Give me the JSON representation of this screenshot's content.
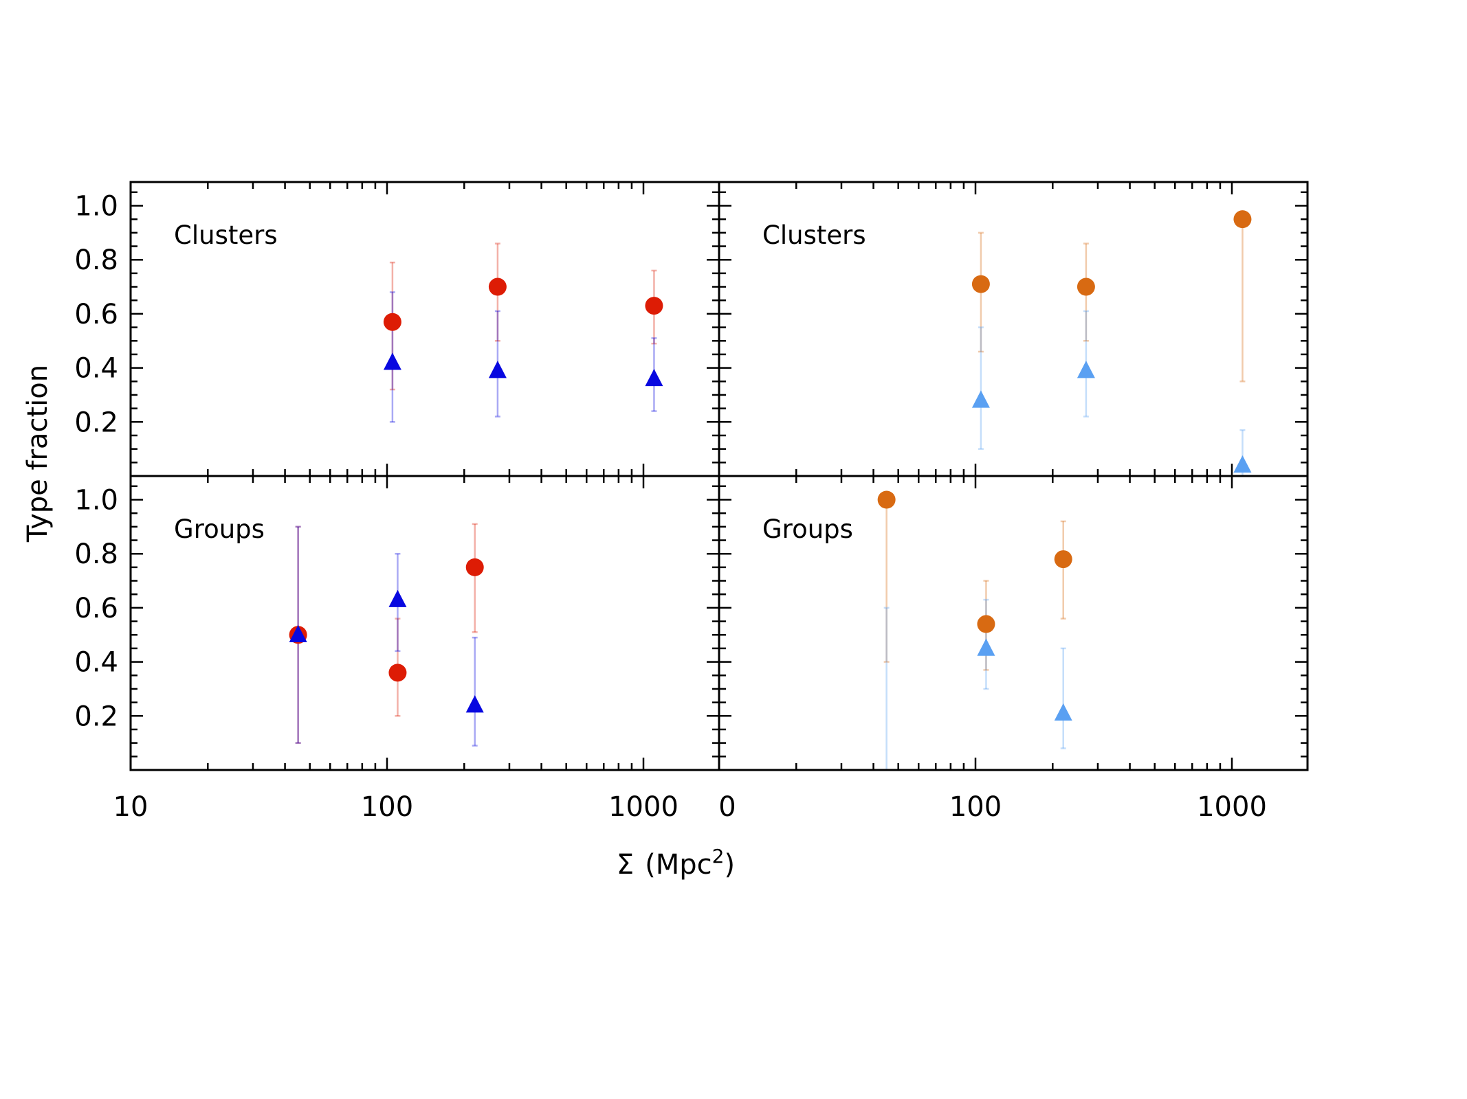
{
  "chart_data": {
    "type": "scatter",
    "ylabel": "Type fraction",
    "xlabel_symbol": "Σ",
    "xlabel_unit": "(Mpc",
    "xlabel_sup": "2",
    "xlabel_close": ")",
    "xscale": "log",
    "xlim": [
      10,
      2000
    ],
    "ylim": [
      0,
      1.1
    ],
    "yticks": [
      0.2,
      0.4,
      0.6,
      0.8,
      1.0
    ],
    "ytick_labels": [
      "0.2",
      "0.4",
      "0.6",
      "0.8",
      "1.0"
    ],
    "xtick_labels_left": [
      "10",
      "100",
      "1000"
    ],
    "xtick_labels_right": [
      "0",
      "100",
      "1000"
    ],
    "colors": {
      "red": "#dd1c05",
      "blue": "#0808e0",
      "orange": "#d86a12",
      "lightblue": "#5aa0f2"
    },
    "panels": [
      {
        "id": "top-left",
        "label": "Clusters",
        "series": [
          {
            "name": "circle",
            "marker": "circle",
            "color_key": "red",
            "points": [
              {
                "x": 105,
                "y": 0.57,
                "lo": 0.32,
                "hi": 0.79
              },
              {
                "x": 270,
                "y": 0.7,
                "lo": 0.5,
                "hi": 0.86
              },
              {
                "x": 1100,
                "y": 0.63,
                "lo": 0.49,
                "hi": 0.76
              }
            ]
          },
          {
            "name": "triangle",
            "marker": "triangle",
            "color_key": "blue",
            "points": [
              {
                "x": 105,
                "y": 0.42,
                "lo": 0.2,
                "hi": 0.68
              },
              {
                "x": 270,
                "y": 0.39,
                "lo": 0.22,
                "hi": 0.61
              },
              {
                "x": 1100,
                "y": 0.36,
                "lo": 0.24,
                "hi": 0.51
              }
            ]
          }
        ]
      },
      {
        "id": "top-right",
        "label": "Clusters",
        "series": [
          {
            "name": "circle",
            "marker": "circle",
            "color_key": "orange",
            "points": [
              {
                "x": 105,
                "y": 0.71,
                "lo": 0.46,
                "hi": 0.9
              },
              {
                "x": 270,
                "y": 0.7,
                "lo": 0.5,
                "hi": 0.86
              },
              {
                "x": 1100,
                "y": 0.95,
                "lo": 0.35,
                "hi": 0.95
              }
            ]
          },
          {
            "name": "triangle",
            "marker": "triangle",
            "color_key": "lightblue",
            "points": [
              {
                "x": 105,
                "y": 0.28,
                "lo": 0.1,
                "hi": 0.55
              },
              {
                "x": 270,
                "y": 0.39,
                "lo": 0.22,
                "hi": 0.61
              },
              {
                "x": 1100,
                "y": 0.04,
                "lo": 0.0,
                "hi": 0.17
              }
            ]
          }
        ]
      },
      {
        "id": "bottom-left",
        "label": "Groups",
        "series": [
          {
            "name": "circle",
            "marker": "circle",
            "color_key": "red",
            "points": [
              {
                "x": 45,
                "y": 0.5,
                "lo": 0.1,
                "hi": 0.9
              },
              {
                "x": 110,
                "y": 0.36,
                "lo": 0.2,
                "hi": 0.56
              },
              {
                "x": 220,
                "y": 0.75,
                "lo": 0.51,
                "hi": 0.91
              }
            ]
          },
          {
            "name": "triangle",
            "marker": "triangle",
            "color_key": "blue",
            "points": [
              {
                "x": 45,
                "y": 0.5,
                "lo": 0.1,
                "hi": 0.9
              },
              {
                "x": 110,
                "y": 0.63,
                "lo": 0.44,
                "hi": 0.8
              },
              {
                "x": 220,
                "y": 0.24,
                "lo": 0.09,
                "hi": 0.49
              }
            ]
          }
        ]
      },
      {
        "id": "bottom-right",
        "label": "Groups",
        "series": [
          {
            "name": "circle",
            "marker": "circle",
            "color_key": "orange",
            "points": [
              {
                "x": 45,
                "y": 1.0,
                "lo": 0.4,
                "hi": 1.0
              },
              {
                "x": 110,
                "y": 0.54,
                "lo": 0.37,
                "hi": 0.7
              },
              {
                "x": 220,
                "y": 0.78,
                "lo": 0.56,
                "hi": 0.92
              }
            ]
          },
          {
            "name": "triangle",
            "marker": "triangle",
            "color_key": "lightblue",
            "points": [
              {
                "x": 45,
                "y": 0.0,
                "lo": 0.0,
                "hi": 0.6
              },
              {
                "x": 110,
                "y": 0.45,
                "lo": 0.3,
                "hi": 0.63
              },
              {
                "x": 220,
                "y": 0.21,
                "lo": 0.08,
                "hi": 0.45
              }
            ]
          }
        ]
      }
    ]
  }
}
